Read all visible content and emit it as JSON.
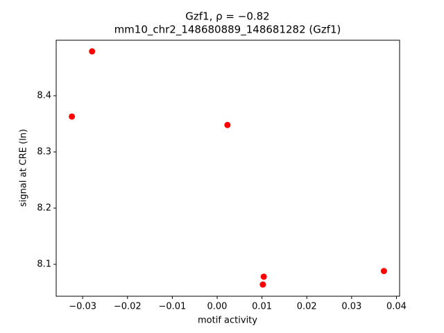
{
  "chart_data": {
    "type": "scatter",
    "title": "Gzf1, ρ = −0.82",
    "subtitle": "mm10_chr2_148680889_148681282 (Gzf1)",
    "x_label": "motif activity",
    "y_label": "signal at CRE (ln)",
    "color": "#ff0000",
    "x": [
      -0.0324,
      -0.0279,
      0.0023,
      0.0104,
      0.0102,
      0.0372
    ],
    "values": [
      8.363,
      8.479,
      8.348,
      8.078,
      8.064,
      8.088
    ],
    "xlim": [
      -0.0359,
      0.0407
    ],
    "ylim": [
      8.0432,
      8.4988
    ],
    "xticks": [
      {
        "value": -0.03,
        "label": "−0.03"
      },
      {
        "value": -0.02,
        "label": "−0.02"
      },
      {
        "value": -0.01,
        "label": "−0.01"
      },
      {
        "value": 0,
        "label": "0.00"
      },
      0.01,
      0.02,
      0.03,
      0.04
    ],
    "yticks": [
      8.1,
      8.2,
      8.3,
      8.4
    ],
    "grid": false
  }
}
